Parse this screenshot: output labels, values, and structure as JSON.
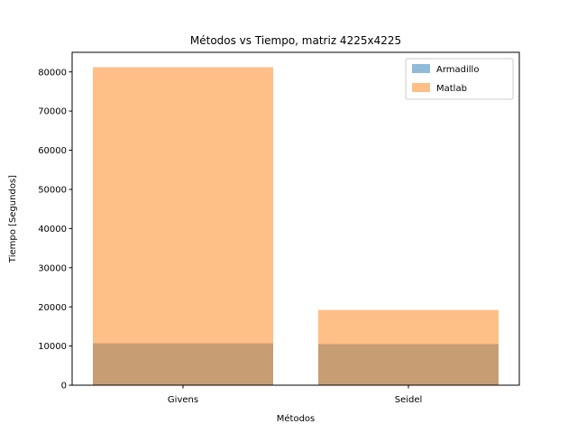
{
  "chart_data": {
    "type": "bar",
    "title": "Métodos vs Tiempo, matriz 4225x4225",
    "xlabel": "Métodos",
    "ylabel": "Tiempo [Segundos]",
    "categories": [
      "Givens",
      "Seidel"
    ],
    "series": [
      {
        "name": "Armadillo",
        "values": [
          10700,
          10500
        ],
        "color": "#1f77b4"
      },
      {
        "name": "Matlab",
        "values": [
          81200,
          19200
        ],
        "color": "#ff7f0e"
      }
    ],
    "bar_opacity": 0.5,
    "ylim": [
      0,
      85000
    ],
    "yticks": [
      0,
      10000,
      20000,
      30000,
      40000,
      50000,
      60000,
      70000,
      80000
    ],
    "ytick_labels": [
      "0",
      "10000",
      "20000",
      "30000",
      "40000",
      "50000",
      "60000",
      "70000",
      "80000"
    ],
    "grid": false,
    "legend_position": "top-right"
  }
}
